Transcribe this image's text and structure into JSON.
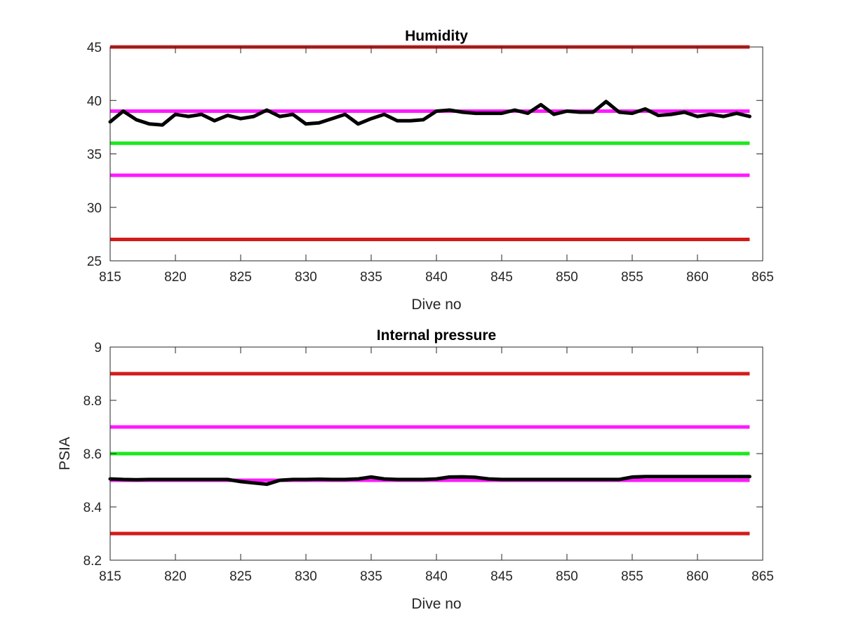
{
  "colors": {
    "limit_red": "#d41a1a",
    "limit_magenta": "#ff19ff",
    "target_green": "#1ce81c",
    "data_black": "#000000"
  },
  "chart_data": [
    {
      "type": "line",
      "title": "Humidity",
      "xlabel": "Dive no",
      "ylabel": "",
      "xlim": [
        815,
        865
      ],
      "ylim": [
        25,
        45
      ],
      "xticks": [
        815,
        820,
        825,
        830,
        835,
        840,
        845,
        850,
        855,
        860,
        865
      ],
      "yticks": [
        25,
        30,
        35,
        40,
        45
      ],
      "xtick_labels": [
        "815",
        "820",
        "825",
        "830",
        "835",
        "840",
        "845",
        "850",
        "855",
        "860",
        "865"
      ],
      "ytick_labels": [
        "25",
        "30",
        "35",
        "40",
        "45"
      ],
      "grid": false,
      "reference_lines": [
        {
          "y": 45,
          "x_range": [
            815,
            864
          ],
          "color": "#d41a1a"
        },
        {
          "y": 39,
          "x_range": [
            815,
            864
          ],
          "color": "#ff19ff"
        },
        {
          "y": 36,
          "x_range": [
            815,
            864
          ],
          "color": "#1ce81c"
        },
        {
          "y": 33,
          "x_range": [
            815,
            864
          ],
          "color": "#ff19ff"
        },
        {
          "y": 27,
          "x_range": [
            815,
            864
          ],
          "color": "#d41a1a"
        }
      ],
      "series": [
        {
          "color": "#000000",
          "x": [
            815,
            816,
            817,
            818,
            819,
            820,
            821,
            822,
            823,
            824,
            825,
            826,
            827,
            828,
            829,
            830,
            831,
            832,
            833,
            834,
            835,
            836,
            837,
            838,
            839,
            840,
            841,
            842,
            843,
            844,
            845,
            846,
            847,
            848,
            849,
            850,
            851,
            852,
            853,
            854,
            855,
            856,
            857,
            858,
            859,
            860,
            861,
            862,
            863,
            864
          ],
          "values": [
            38.0,
            39.0,
            38.2,
            37.8,
            37.7,
            38.7,
            38.5,
            38.7,
            38.1,
            38.6,
            38.3,
            38.5,
            39.1,
            38.5,
            38.7,
            37.8,
            37.9,
            38.3,
            38.7,
            37.8,
            38.3,
            38.7,
            38.1,
            38.1,
            38.2,
            39.0,
            39.1,
            38.9,
            38.8,
            38.8,
            38.8,
            39.1,
            38.8,
            39.6,
            38.7,
            39.0,
            38.9,
            38.9,
            39.9,
            38.9,
            38.8,
            39.2,
            38.6,
            38.7,
            38.9,
            38.5,
            38.7,
            38.5,
            38.8,
            38.5
          ]
        }
      ]
    },
    {
      "type": "line",
      "title": "Internal pressure",
      "xlabel": "Dive no",
      "ylabel": "PSIA",
      "xlim": [
        815,
        865
      ],
      "ylim": [
        8.2,
        9
      ],
      "xticks": [
        815,
        820,
        825,
        830,
        835,
        840,
        845,
        850,
        855,
        860,
        865
      ],
      "yticks": [
        8.2,
        8.4,
        8.6,
        8.8,
        9
      ],
      "xtick_labels": [
        "815",
        "820",
        "825",
        "830",
        "835",
        "840",
        "845",
        "850",
        "855",
        "860",
        "865"
      ],
      "ytick_labels": [
        "8.2",
        "8.4",
        "8.6",
        "8.8",
        "9"
      ],
      "grid": false,
      "reference_lines": [
        {
          "y": 8.9,
          "x_range": [
            815,
            864
          ],
          "color": "#d41a1a"
        },
        {
          "y": 8.7,
          "x_range": [
            815,
            864
          ],
          "color": "#ff19ff"
        },
        {
          "y": 8.6,
          "x_range": [
            815,
            864
          ],
          "color": "#1ce81c"
        },
        {
          "y": 8.5,
          "x_range": [
            815,
            864
          ],
          "color": "#ff19ff"
        },
        {
          "y": 8.3,
          "x_range": [
            815,
            864
          ],
          "color": "#d41a1a"
        }
      ],
      "series": [
        {
          "color": "#000000",
          "x": [
            815,
            816,
            817,
            818,
            819,
            820,
            821,
            822,
            823,
            824,
            825,
            826,
            827,
            828,
            829,
            830,
            831,
            832,
            833,
            834,
            835,
            836,
            837,
            838,
            839,
            840,
            841,
            842,
            843,
            844,
            845,
            846,
            847,
            848,
            849,
            850,
            851,
            852,
            853,
            854,
            855,
            856,
            857,
            858,
            859,
            860,
            861,
            862,
            863,
            864
          ],
          "values": [
            8.505,
            8.503,
            8.502,
            8.503,
            8.503,
            8.503,
            8.503,
            8.503,
            8.503,
            8.503,
            8.495,
            8.49,
            8.485,
            8.5,
            8.503,
            8.503,
            8.504,
            8.503,
            8.503,
            8.505,
            8.512,
            8.505,
            8.503,
            8.503,
            8.503,
            8.505,
            8.512,
            8.513,
            8.511,
            8.505,
            8.503,
            8.503,
            8.503,
            8.503,
            8.503,
            8.503,
            8.503,
            8.503,
            8.503,
            8.503,
            8.512,
            8.514,
            8.514,
            8.514,
            8.514,
            8.514,
            8.514,
            8.514,
            8.514,
            8.514
          ]
        }
      ]
    }
  ]
}
